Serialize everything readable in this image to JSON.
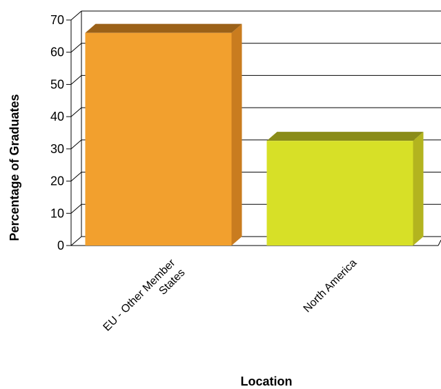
{
  "chart_data": {
    "type": "bar",
    "categories": [
      "EU - Other Member States",
      "North America"
    ],
    "category_lines": [
      [
        "EU - Other Member",
        "States"
      ],
      [
        "North America"
      ]
    ],
    "values": [
      66,
      32.5
    ],
    "colors": {
      "front": [
        "#f2a02e",
        "#d7e027"
      ],
      "top": [
        "#9b6118",
        "#8a8c18"
      ],
      "side": [
        "#c97c1f",
        "#b3b41f"
      ]
    },
    "xlabel": "Location",
    "ylabel": "Percentage of Graduates",
    "ylim": [
      0,
      70
    ],
    "yticks": [
      0,
      10,
      20,
      30,
      40,
      50,
      60,
      70
    ],
    "grid": true,
    "style": "3d-bar"
  }
}
